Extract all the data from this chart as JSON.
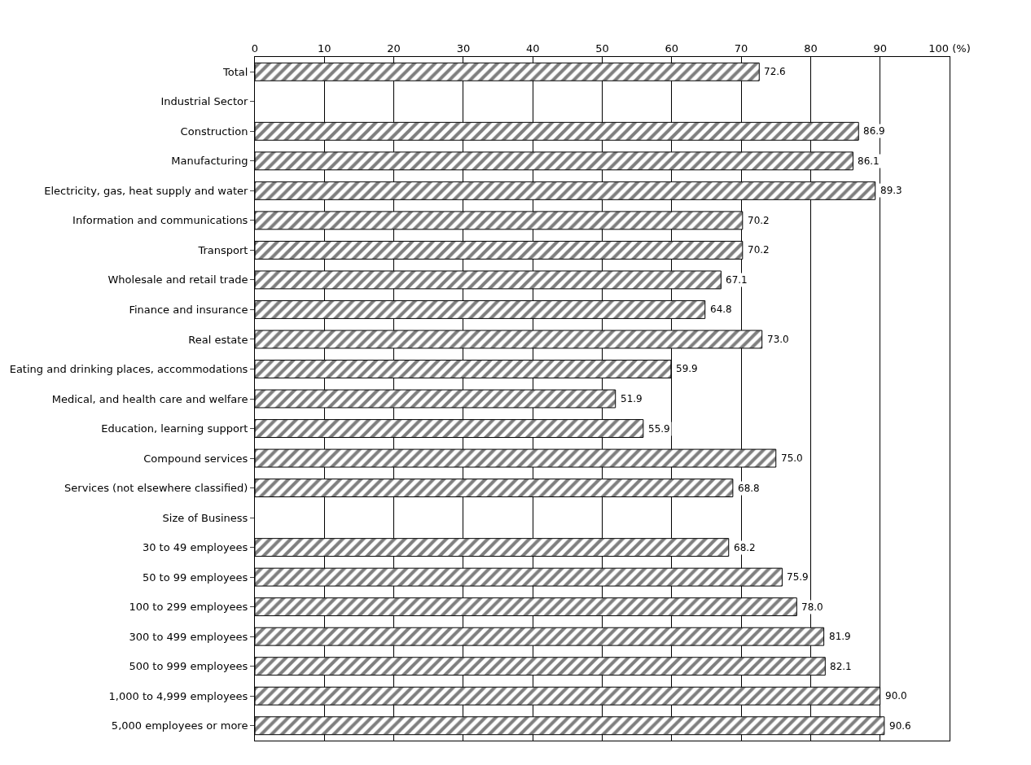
{
  "chart_data": {
    "type": "bar",
    "orientation": "horizontal",
    "categories": [
      "Total",
      "Industrial Sector",
      "Construction",
      "Manufacturing",
      "Electricity, gas, heat supply and water",
      "Information and communications",
      "Transport",
      "Wholesale and retail trade",
      "Finance and insurance",
      "Real estate",
      "Eating and drinking places, accommodations",
      "Medical, and health care and welfare",
      "Education, learning support",
      "Compound services",
      "Services (not elsewhere classified)",
      "Size of Business",
      "30 to 49 employees",
      "50 to 99 employees",
      "100 to 299 employees",
      "300 to 499 employees",
      "500 to 999 employees",
      "1,000 to 4,999 employees",
      "5,000 employees or more"
    ],
    "values": [
      72.6,
      null,
      86.9,
      86.1,
      89.3,
      70.2,
      70.2,
      67.1,
      64.8,
      73.0,
      59.9,
      51.9,
      55.9,
      75.0,
      68.8,
      null,
      68.2,
      75.9,
      78.0,
      81.9,
      82.1,
      90.0,
      90.6
    ],
    "value_labels": [
      "72.6",
      null,
      "86.9",
      "86.1",
      "89.3",
      "70.2",
      "70.2",
      "67.1",
      "64.8",
      "73.0",
      "59.9",
      "51.9",
      "55.9",
      "75.0",
      "68.8",
      null,
      "68.2",
      "75.9",
      "78.0",
      "81.9",
      "82.1",
      "90.0",
      "90.6"
    ],
    "color": "#000000",
    "xlim": [
      0,
      100
    ],
    "xticks": [
      0,
      10,
      20,
      30,
      40,
      50,
      60,
      70,
      80,
      90,
      {
        "value": 100,
        "label": "100 (%)"
      }
    ],
    "grid": "x"
  }
}
